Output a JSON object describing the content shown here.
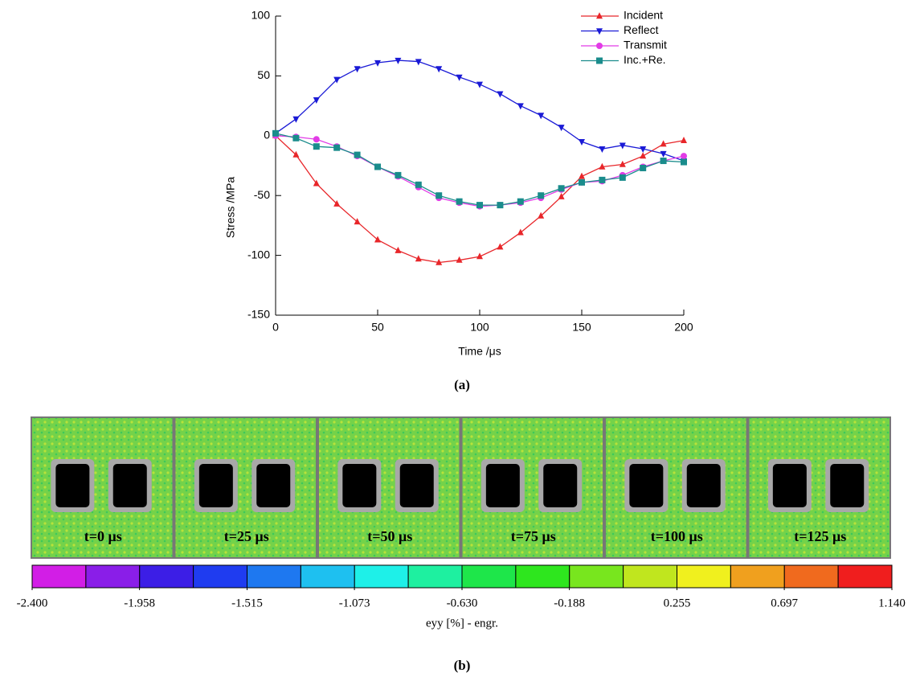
{
  "chart_data": [
    {
      "type": "line",
      "ylabel": "Stress /MPa",
      "xlabel": "Time /μs",
      "x": [
        0,
        10,
        20,
        30,
        40,
        50,
        60,
        70,
        80,
        90,
        100,
        110,
        120,
        130,
        140,
        150,
        160,
        170,
        180,
        190,
        200
      ],
      "xlim": [
        0,
        200
      ],
      "xticks": [
        0,
        50,
        100,
        150,
        200
      ],
      "ylim": [
        -150,
        100
      ],
      "yticks": [
        -150,
        -100,
        -50,
        0,
        50,
        100
      ],
      "legend": "upper right",
      "series": [
        {
          "name": "Incident",
          "color": "#e8262a",
          "marker": "triangle-up",
          "values": [
            0,
            -16,
            -40,
            -57,
            -72,
            -87,
            -96,
            -103,
            -106,
            -104,
            -101,
            -93,
            -81,
            -67,
            -51,
            -34,
            -26,
            -24,
            -17,
            -7,
            -4
          ]
        },
        {
          "name": "Reflect",
          "color": "#1a1ad6",
          "marker": "triangle-down",
          "values": [
            2,
            14,
            30,
            47,
            56,
            61,
            63,
            62,
            56,
            49,
            43,
            35,
            25,
            17,
            7,
            -5,
            -11,
            -8,
            -11,
            -15,
            -21
          ]
        },
        {
          "name": "Transmit",
          "color": "#e23be6",
          "marker": "circle",
          "values": [
            0,
            -1,
            -3,
            -9,
            -17,
            -26,
            -34,
            -43,
            -52,
            -56,
            -59,
            -58,
            -56,
            -52,
            -45,
            -39,
            -38,
            -33,
            -26,
            -21,
            -17
          ]
        },
        {
          "name": "Inc.+Re.",
          "color": "#1a8c8c",
          "marker": "square",
          "values": [
            2,
            -2,
            -9,
            -10,
            -16,
            -26,
            -33,
            -41,
            -50,
            -55,
            -58,
            -58,
            -55,
            -50,
            -44,
            -39,
            -37,
            -35,
            -27,
            -21,
            -22
          ]
        }
      ]
    },
    {
      "type": "colorbar",
      "label": "eyy [%] - engr.",
      "lim": [
        -2.4,
        1.14
      ],
      "ticks": [
        {
          "value": -2.4,
          "label": "-2.400"
        },
        {
          "value": -1.958,
          "label": "-1.958"
        },
        {
          "value": -1.515,
          "label": "-1.515"
        },
        {
          "value": -1.073,
          "label": "-1.073"
        },
        {
          "value": -0.63,
          "label": "-0.630"
        },
        {
          "value": -0.188,
          "label": "-0.188"
        },
        {
          "value": 0.255,
          "label": "0.255"
        },
        {
          "value": 0.697,
          "label": "0.697"
        },
        {
          "value": 1.14,
          "label": "1.140"
        }
      ],
      "colors": [
        "#d21ee6",
        "#8a1ee8",
        "#3c1ee6",
        "#1f3cf0",
        "#1e78f0",
        "#1ec0f0",
        "#1ef0e8",
        "#1ef0a0",
        "#1ee64a",
        "#2ee61e",
        "#78e61e",
        "#c0e61e",
        "#f0f01e",
        "#f0a01e",
        "#f06a1e",
        "#f01e1e"
      ]
    }
  ],
  "figure": {
    "caption_a": "(a)",
    "caption_b": "(b)",
    "frames": [
      "t=0 μs",
      "t=25 μs",
      "t=50 μs",
      "t=75 μs",
      "t=100 μs",
      "t=125 μs"
    ]
  }
}
